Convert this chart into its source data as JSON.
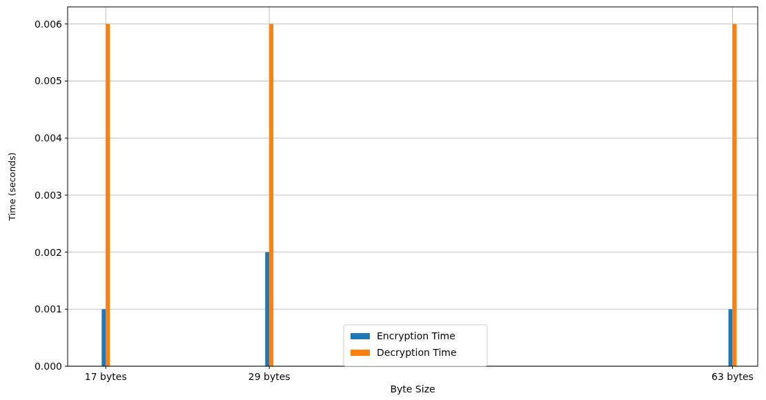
{
  "chart_data": {
    "type": "bar",
    "xlabel": "Byte Size",
    "ylabel": "Time (seconds)",
    "x": [
      17,
      29,
      63
    ],
    "series": [
      {
        "name": "Encryption Time",
        "color": "#1f77b4",
        "values": [
          0.001,
          0.002,
          0.001
        ]
      },
      {
        "name": "Decryption Time",
        "color": "#ff7f0e",
        "values": [
          0.006,
          0.006,
          0.006
        ]
      }
    ],
    "xlim": [
      14.2,
      64.85
    ],
    "xticks": [
      {
        "value": 17,
        "label": "17 bytes"
      },
      {
        "value": 29,
        "label": "29 bytes"
      },
      {
        "value": 63,
        "label": "63 bytes"
      }
    ],
    "ylim": [
      0,
      0.0063
    ],
    "yticks": [
      {
        "value": 0,
        "label": "0.000"
      },
      {
        "value": 0.001,
        "label": "0.001"
      },
      {
        "value": 0.002,
        "label": "0.002"
      },
      {
        "value": 0.003,
        "label": "0.003"
      },
      {
        "value": 0.004,
        "label": "0.004"
      },
      {
        "value": 0.005,
        "label": "0.005"
      },
      {
        "value": 0.006,
        "label": "0.006"
      }
    ],
    "grid": true,
    "legend": "bottom"
  }
}
